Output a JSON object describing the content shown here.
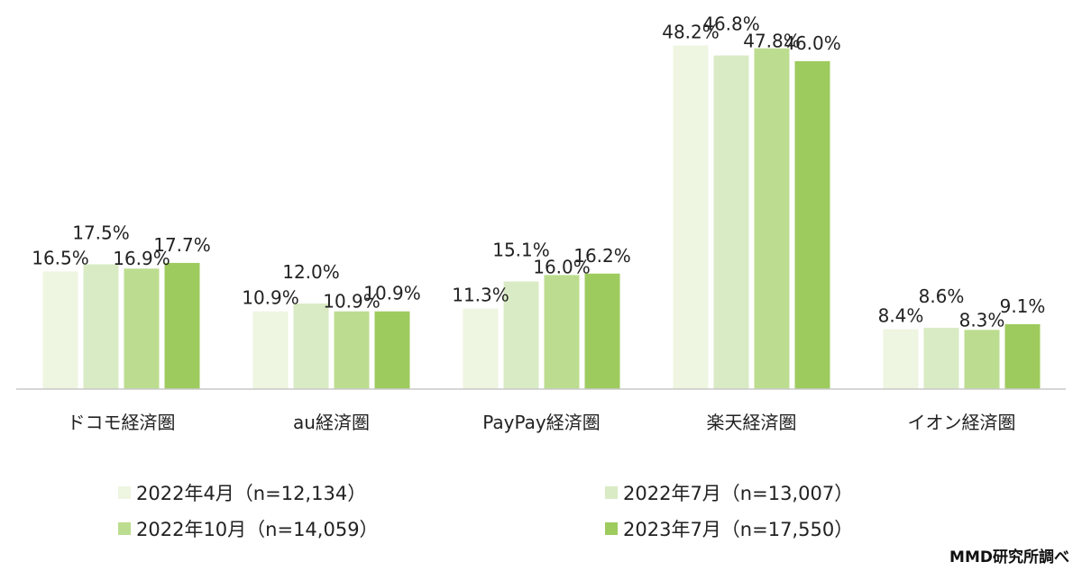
{
  "chart_data": {
    "type": "bar",
    "categories": [
      "ドコモ経済圏",
      "au経済圏",
      "PayPay経済圏",
      "楽天経済圏",
      "イオン経済圏"
    ],
    "series": [
      {
        "name": "2022年4月（n=12,134）",
        "color": "#eef5e1",
        "values": [
          16.5,
          10.9,
          11.3,
          48.2,
          8.4
        ],
        "labels": [
          "16.5%",
          "10.9%",
          "11.3%",
          "48.2%",
          "8.4%"
        ]
      },
      {
        "name": "2022年7月（n=13,007）",
        "color": "#d9ebc4",
        "values": [
          17.5,
          12.0,
          15.1,
          46.8,
          8.6
        ],
        "labels": [
          "17.5%",
          "12.0%",
          "15.1%",
          "46.8%",
          "8.6%"
        ]
      },
      {
        "name": "2022年10月（n=14,059）",
        "color": "#bcdd8f",
        "values": [
          16.9,
          10.9,
          16.0,
          47.8,
          8.3
        ],
        "labels": [
          "16.9%",
          "10.9%",
          "16.0%",
          "47.8%",
          "8.3%"
        ]
      },
      {
        "name": "2023年7月（n=17,550）",
        "color": "#9ecb5e",
        "values": [
          17.7,
          10.9,
          16.2,
          46.0,
          9.1
        ],
        "labels": [
          "17.7%",
          "10.9%",
          "16.2%",
          "46.0%",
          "9.1%"
        ]
      }
    ],
    "ylim": [
      0,
      50
    ],
    "grid": false,
    "legend_position": "bottom"
  },
  "source_note": "MMD研究所調べ"
}
